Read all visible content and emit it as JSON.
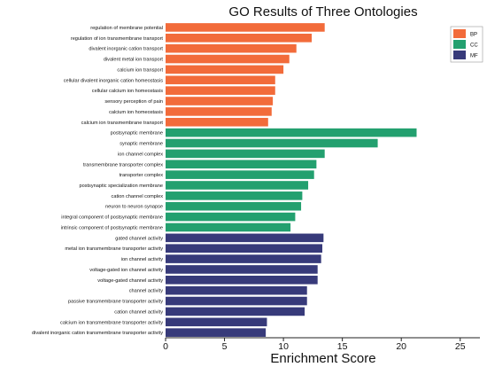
{
  "chart_data": {
    "type": "bar",
    "orientation": "horizontal",
    "title": "GO Results of Three Ontologies",
    "xlabel": "Enrichment Score",
    "ylabel": "",
    "xlim": [
      0,
      27
    ],
    "xticks": [
      0,
      5,
      10,
      15,
      20,
      25
    ],
    "grid": false,
    "legend_position": "top-right",
    "legend": [
      {
        "name": "BP",
        "color": "#f26b3a"
      },
      {
        "name": "CC",
        "color": "#23a06f"
      },
      {
        "name": "MF",
        "color": "#373a7a"
      }
    ],
    "bars": [
      {
        "label": "regulation of membrane potential",
        "value": 13.5,
        "group": "BP"
      },
      {
        "label": "regulation of ion transmembrane transport",
        "value": 12.4,
        "group": "BP"
      },
      {
        "label": "divalent inorganic cation transport",
        "value": 11.1,
        "group": "BP"
      },
      {
        "label": "divalent metal ion transport",
        "value": 10.5,
        "group": "BP"
      },
      {
        "label": "calcium ion transport",
        "value": 10.0,
        "group": "BP"
      },
      {
        "label": "cellular divalent inorganic cation homeostasis",
        "value": 9.3,
        "group": "BP"
      },
      {
        "label": "cellular calcium ion homeostasis",
        "value": 9.3,
        "group": "BP"
      },
      {
        "label": "sensory perception of pain",
        "value": 9.1,
        "group": "BP"
      },
      {
        "label": "calcium ion homeostasis",
        "value": 9.0,
        "group": "BP"
      },
      {
        "label": "calcium ion transmembrane transport",
        "value": 8.7,
        "group": "BP"
      },
      {
        "label": "postsynaptic membrane",
        "value": 21.3,
        "group": "CC"
      },
      {
        "label": "synaptic membrane",
        "value": 18.0,
        "group": "CC"
      },
      {
        "label": "ion channel complex",
        "value": 13.5,
        "group": "CC"
      },
      {
        "label": "transmembrane transporter complex",
        "value": 12.8,
        "group": "CC"
      },
      {
        "label": "transporter complex",
        "value": 12.6,
        "group": "CC"
      },
      {
        "label": "postsynaptic specialization membrane",
        "value": 12.1,
        "group": "CC"
      },
      {
        "label": "cation channel complex",
        "value": 11.6,
        "group": "CC"
      },
      {
        "label": "neuron to neuron synapse",
        "value": 11.5,
        "group": "CC"
      },
      {
        "label": "integral component of postsynaptic membrane",
        "value": 11.0,
        "group": "CC"
      },
      {
        "label": "intrinsic component of postsynaptic membrane",
        "value": 10.6,
        "group": "CC"
      },
      {
        "label": "gated channel activity",
        "value": 13.4,
        "group": "MF"
      },
      {
        "label": "metal ion transmembrane transporter activity",
        "value": 13.3,
        "group": "MF"
      },
      {
        "label": "ion channel activity",
        "value": 13.2,
        "group": "MF"
      },
      {
        "label": "voltage-gated ion channel activity",
        "value": 12.9,
        "group": "MF"
      },
      {
        "label": "voltage-gated channel activity",
        "value": 12.9,
        "group": "MF"
      },
      {
        "label": "channel activity",
        "value": 12.0,
        "group": "MF"
      },
      {
        "label": "passive transmembrane transporter activity",
        "value": 12.0,
        "group": "MF"
      },
      {
        "label": "cation channel activity",
        "value": 11.8,
        "group": "MF"
      },
      {
        "label": "calcium ion transmembrane transporter activity",
        "value": 8.6,
        "group": "MF"
      },
      {
        "label": "divalent inorganic cation transmembrane transporter activity",
        "value": 8.5,
        "group": "MF"
      }
    ]
  }
}
